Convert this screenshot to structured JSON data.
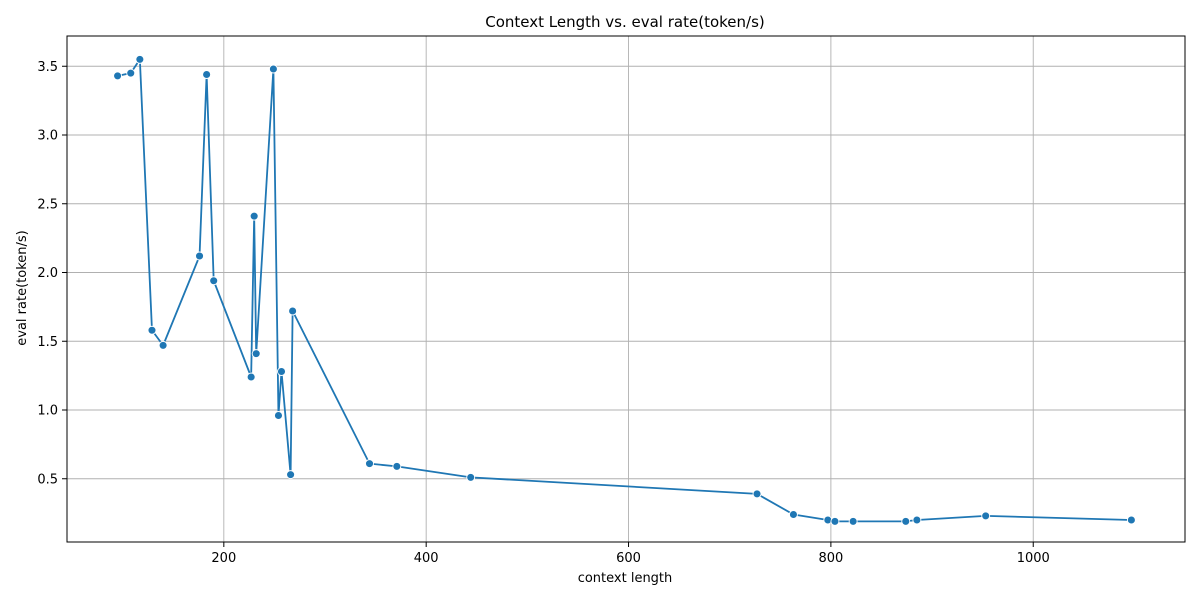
{
  "chart_data": {
    "type": "line",
    "title": "Context Length vs. eval rate(token/s)",
    "xlabel": "context length",
    "ylabel": "eval rate(token/s)",
    "xlim": [
      45,
      1150
    ],
    "ylim": [
      0.04,
      3.72
    ],
    "xticks": [
      200,
      400,
      600,
      800,
      1000
    ],
    "yticks": [
      0.5,
      1.0,
      1.5,
      2.0,
      2.5,
      3.0,
      3.5
    ],
    "xtick_labels": [
      "200",
      "400",
      "600",
      "800",
      "1000"
    ],
    "ytick_labels": [
      "0.5",
      "1.0",
      "1.5",
      "2.0",
      "2.5",
      "3.0",
      "3.5"
    ],
    "grid": true,
    "line_color": "#1f77b4",
    "series": [
      {
        "x": [
          95,
          108,
          117,
          129,
          140,
          176,
          183,
          190,
          227,
          230,
          232,
          249,
          254,
          257,
          266,
          268,
          344,
          371,
          444,
          727,
          763,
          797,
          804,
          822,
          874,
          885,
          953,
          1097
        ],
        "y": [
          3.43,
          3.45,
          3.55,
          1.58,
          1.47,
          2.12,
          3.44,
          1.94,
          1.24,
          2.41,
          1.41,
          3.48,
          0.96,
          1.28,
          0.53,
          1.72,
          0.61,
          0.59,
          0.51,
          0.39,
          0.24,
          0.2,
          0.19,
          0.19,
          0.19,
          0.2,
          0.23,
          0.2
        ]
      }
    ]
  }
}
